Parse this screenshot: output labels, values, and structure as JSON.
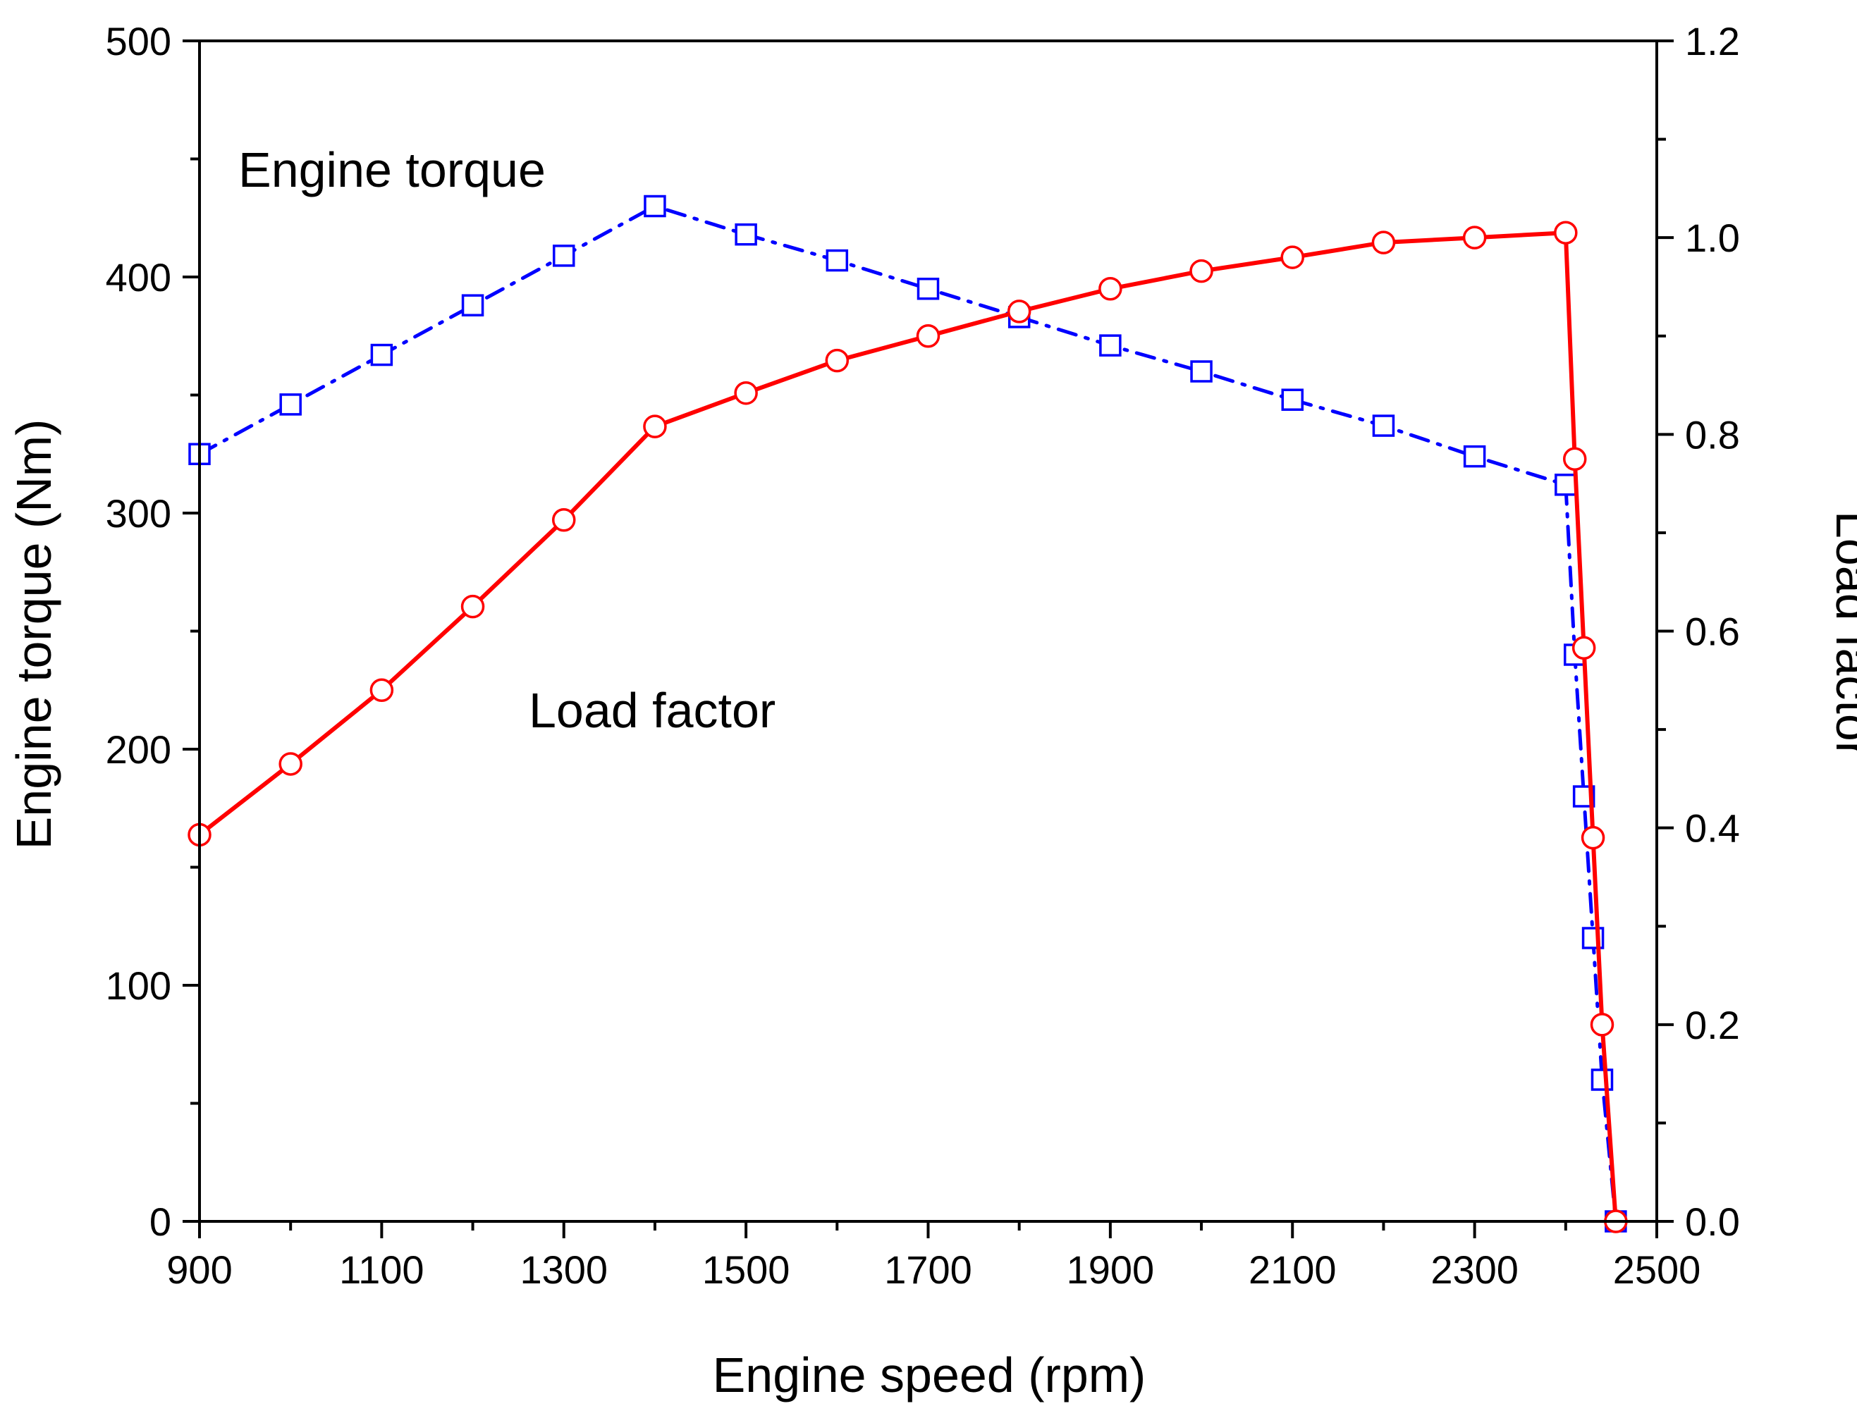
{
  "chart_data": {
    "type": "line",
    "xlabel": "Engine speed (rpm)",
    "ylabel_left": "Engine torque (Nm)",
    "ylabel_right": "Load factor",
    "xlim": [
      900,
      2500
    ],
    "ylim_left": [
      0,
      500
    ],
    "ylim_right": [
      0.0,
      1.2
    ],
    "x_ticks": [
      "900",
      "1100",
      "1300",
      "1500",
      "1700",
      "1900",
      "2100",
      "2300",
      "2500"
    ],
    "y_left_ticks": [
      "0",
      "100",
      "200",
      "300",
      "400",
      "500"
    ],
    "y_right_ticks": [
      "0.0",
      "0.2",
      "0.4",
      "0.6",
      "0.8",
      "1.0",
      "1.2"
    ],
    "grid": false,
    "series": [
      {
        "name": "Engine torque",
        "axis": "left",
        "color": "#0000ff",
        "line_style": "dash-dot",
        "marker": "open-square",
        "x": [
          900,
          1000,
          1100,
          1200,
          1300,
          1400,
          1500,
          1600,
          1700,
          1800,
          1900,
          2000,
          2100,
          2200,
          2300,
          2400,
          2410,
          2420,
          2430,
          2440,
          2455
        ],
        "values": [
          325,
          346,
          367,
          388,
          409,
          430,
          418,
          407,
          395,
          383,
          371,
          360,
          348,
          337,
          324,
          312,
          240,
          180,
          120,
          60,
          0
        ]
      },
      {
        "name": "Load factor",
        "axis": "right",
        "color": "#ff0000",
        "line_style": "solid",
        "marker": "open-circle",
        "x": [
          900,
          1000,
          1100,
          1200,
          1300,
          1400,
          1500,
          1600,
          1700,
          1800,
          1900,
          2000,
          2100,
          2200,
          2300,
          2400,
          2410,
          2420,
          2430,
          2440,
          2455
        ],
        "values": [
          0.393,
          0.465,
          0.54,
          0.625,
          0.713,
          0.808,
          0.842,
          0.875,
          0.9,
          0.925,
          0.948,
          0.966,
          0.98,
          0.995,
          1.0,
          1.005,
          0.775,
          0.583,
          0.39,
          0.2,
          0.0
        ]
      }
    ],
    "annotations": [
      "Engine torque",
      "Load factor"
    ]
  }
}
